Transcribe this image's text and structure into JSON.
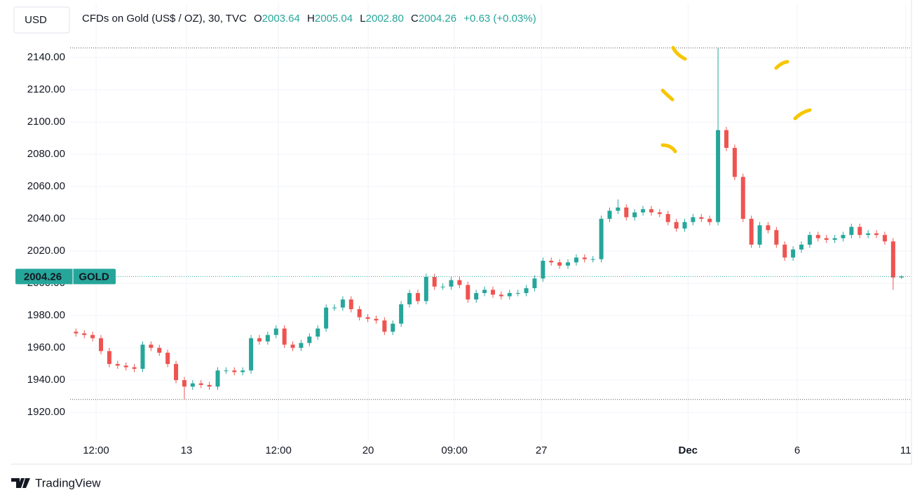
{
  "currency": "USD",
  "legend": {
    "title": "CFDs on Gold (US$ / OZ), 30, TVC",
    "o_label": "O",
    "open": "2003.64",
    "h_label": "H",
    "high": "2005.04",
    "l_label": "L",
    "low": "2002.80",
    "c_label": "C",
    "close": "2004.26",
    "change": "+0.63 (+0.03%)"
  },
  "symbol": "GOLD",
  "brand": "TradingView",
  "chart_data": {
    "type": "candlestick",
    "up_color": "#26a69a",
    "down_color": "#ef5350",
    "ylim": [
      1904,
      2173.5
    ],
    "yticks": [
      {
        "value": 1920,
        "label": "1920.00"
      },
      {
        "value": 1940,
        "label": "1940.00"
      },
      {
        "value": 1960,
        "label": "1960.00"
      },
      {
        "value": 1980,
        "label": "1980.00"
      },
      {
        "value": 2000,
        "label": "2000.00"
      },
      {
        "value": 2020,
        "label": "2020.00"
      },
      {
        "value": 2040,
        "label": "2040.00"
      },
      {
        "value": 2060,
        "label": "2060.00"
      },
      {
        "value": 2080,
        "label": "2080.00"
      },
      {
        "value": 2100,
        "label": "2100.00"
      },
      {
        "value": 2120,
        "label": "2120.00"
      },
      {
        "value": 2140,
        "label": "2140.00"
      }
    ],
    "xlim": [
      -0.7,
      100.2
    ],
    "xticks": [
      {
        "value": 2.41,
        "label": "12:00"
      },
      {
        "value": 13.26,
        "label": "13"
      },
      {
        "value": 24.28,
        "label": "12:00"
      },
      {
        "value": 35.04,
        "label": "20"
      },
      {
        "value": 45.39,
        "label": "09:00"
      },
      {
        "value": 55.82,
        "label": "27"
      },
      {
        "value": 73.4,
        "label": "Dec"
      },
      {
        "value": 86.5,
        "label": "6"
      },
      {
        "value": 99.5,
        "label": "11"
      }
    ],
    "grid": true,
    "range_high": 2146,
    "range_low": 1928,
    "open": [
      1970,
      1969,
      1968,
      1966,
      1958,
      1950,
      1949,
      1948,
      1947,
      1962,
      1960,
      1957,
      1950,
      1940,
      1936,
      1938,
      1937,
      1936,
      1946,
      1946,
      1945,
      1946,
      1966,
      1964,
      1968,
      1972,
      1962,
      1960,
      1963,
      1967,
      1972,
      1985,
      1985,
      1990,
      1984,
      1979,
      1978,
      1977,
      1970,
      1975,
      1987,
      1994,
      1989,
      2004,
      1998,
      1998,
      2002,
      1999,
      1990,
      1994,
      1996,
      1993,
      1992,
      1994,
      1994,
      1997,
      2003,
      2014,
      2013,
      2011,
      2013,
      2016,
      2015,
      2015,
      2040,
      2045,
      2047,
      2041,
      2044,
      2046,
      2044,
      2043,
      2038,
      2034,
      2038,
      2041,
      2040,
      2038,
      2095,
      2084,
      2066,
      2040,
      2024,
      2036,
      2033,
      2024,
      2016,
      2021,
      2024,
      2030,
      2028,
      2027,
      2028,
      2030,
      2035,
      2030,
      2031,
      2030,
      2026,
      2003.64
    ],
    "high": [
      1972,
      1971,
      1970,
      1968,
      1960,
      1952,
      1951,
      1950,
      1964,
      1964,
      1962,
      1959,
      1952,
      1942,
      1940,
      1940,
      1939,
      1948,
      1948,
      1948,
      1948,
      1968,
      1968,
      1970,
      1974,
      1974,
      1964,
      1965,
      1969,
      1974,
      1987,
      1987,
      1992,
      1992,
      1986,
      1981,
      1980,
      1979,
      1977,
      1989,
      1996,
      1996,
      2006,
      2006,
      2000,
      2004,
      2004,
      2001,
      1996,
      1998,
      1998,
      1995,
      1996,
      1996,
      1999,
      2005,
      2016,
      2016,
      2015,
      2015,
      2018,
      2018,
      2017,
      2042,
      2047,
      2052,
      2049,
      2046,
      2048,
      2048,
      2046,
      2045,
      2040,
      2040,
      2043,
      2043,
      2042,
      2146,
      2097,
      2086,
      2068,
      2042,
      2038,
      2038,
      2035,
      2026,
      2023,
      2026,
      2032,
      2032,
      2030,
      2030,
      2032,
      2037,
      2037,
      2033,
      2033,
      2032,
      2028,
      2005.04
    ],
    "low": [
      1967,
      1966,
      1964,
      1956,
      1948,
      1947,
      1946,
      1945,
      1945,
      1958,
      1955,
      1948,
      1938,
      1928,
      1934,
      1935,
      1934,
      1934,
      1944,
      1943,
      1943,
      1944,
      1962,
      1962,
      1966,
      1960,
      1958,
      1958,
      1961,
      1965,
      1970,
      1983,
      1983,
      1982,
      1977,
      1976,
      1975,
      1968,
      1968,
      1973,
      1985,
      1987,
      1987,
      1996,
      1996,
      1996,
      1997,
      1988,
      1988,
      1992,
      1991,
      1990,
      1990,
      1992,
      1992,
      1995,
      2001,
      2011,
      2009,
      2009,
      2011,
      2013,
      2013,
      2013,
      2038,
      2043,
      2039,
      2039,
      2042,
      2042,
      2041,
      2036,
      2032,
      2032,
      2036,
      2038,
      2036,
      2036,
      2082,
      2064,
      2038,
      2022,
      2022,
      2031,
      2022,
      2014,
      2014,
      2019,
      2022,
      2026,
      2025,
      2025,
      2026,
      2028,
      2028,
      2028,
      2028,
      2024,
      1996,
      2002.8
    ],
    "close": [
      1969,
      1968,
      1966,
      1958,
      1950,
      1949,
      1948,
      1947,
      1962,
      1960,
      1957,
      1950,
      1940,
      1936,
      1938,
      1937,
      1936,
      1946,
      1946,
      1945,
      1946,
      1966,
      1964,
      1968,
      1972,
      1962,
      1960,
      1963,
      1967,
      1972,
      1985,
      1985,
      1990,
      1984,
      1979,
      1978,
      1977,
      1970,
      1975,
      1987,
      1994,
      1989,
      2004,
      1998,
      1998,
      2002,
      1999,
      1990,
      1994,
      1996,
      1993,
      1992,
      1994,
      1994,
      1997,
      2003,
      2014,
      2013,
      2011,
      2013,
      2016,
      2015,
      2015,
      2040,
      2045,
      2047,
      2041,
      2044,
      2046,
      2044,
      2043,
      2038,
      2034,
      2038,
      2041,
      2040,
      2038,
      2095,
      2084,
      2066,
      2040,
      2024,
      2036,
      2033,
      2024,
      2016,
      2021,
      2024,
      2030,
      2028,
      2027,
      2028,
      2030,
      2035,
      2030,
      2031,
      2030,
      2026,
      2003.64,
      2004.26
    ]
  }
}
